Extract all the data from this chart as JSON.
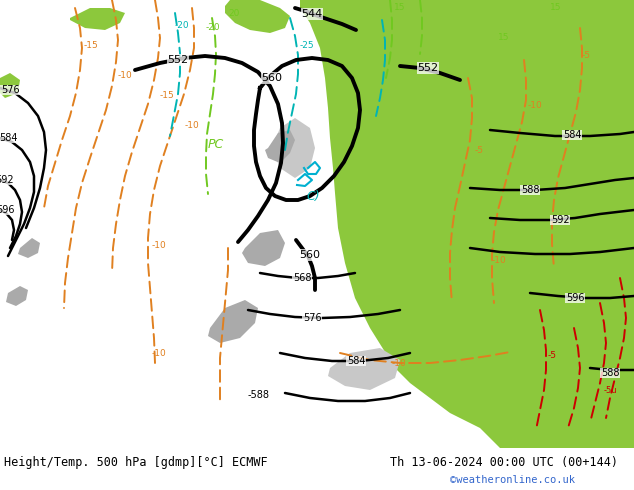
{
  "title_left": "Height/Temp. 500 hPa [gdmp][°C] ECMWF",
  "title_right": "Th 13-06-2024 00:00 UTC (00+144)",
  "watermark": "©weatheronline.co.uk",
  "fig_width": 6.34,
  "fig_height": 4.9,
  "dpi": 100,
  "title_fontsize": 8.5,
  "watermark_color": "#3366cc",
  "map_bg": "#c8c8c8",
  "green": "#8cc83c",
  "grey_land": "#aaaaaa",
  "orange": "#e08020",
  "teal": "#00b4b4",
  "lime": "#70c820",
  "cyan": "#00b0d0",
  "red": "#cc0000",
  "black": "#000000",
  "white": "#ffffff"
}
